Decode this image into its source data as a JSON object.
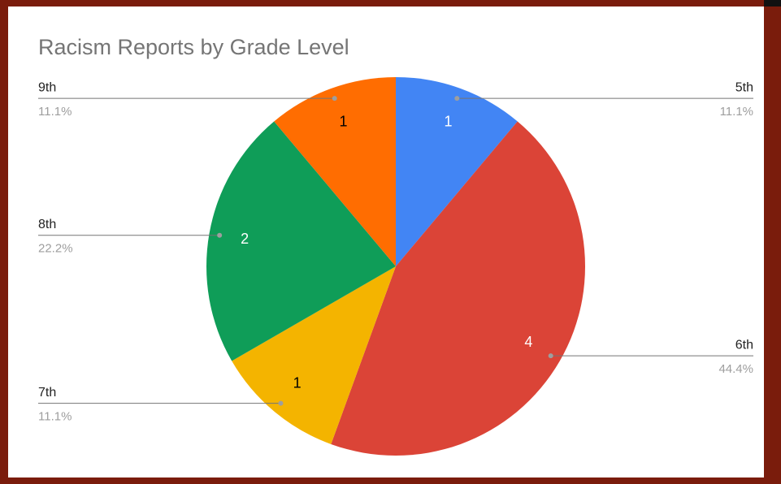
{
  "chart_data": {
    "type": "pie",
    "title": "Racism Reports by Grade Level",
    "categories": [
      "5th",
      "6th",
      "7th",
      "8th",
      "9th"
    ],
    "values": [
      1,
      4,
      1,
      2,
      1
    ],
    "percent_labels": [
      "11.1%",
      "44.4%",
      "11.1%",
      "22.2%",
      "11.1%"
    ],
    "colors": [
      "#4285f4",
      "#db4437",
      "#f4b400",
      "#0f9d58",
      "#ff6d01"
    ]
  }
}
